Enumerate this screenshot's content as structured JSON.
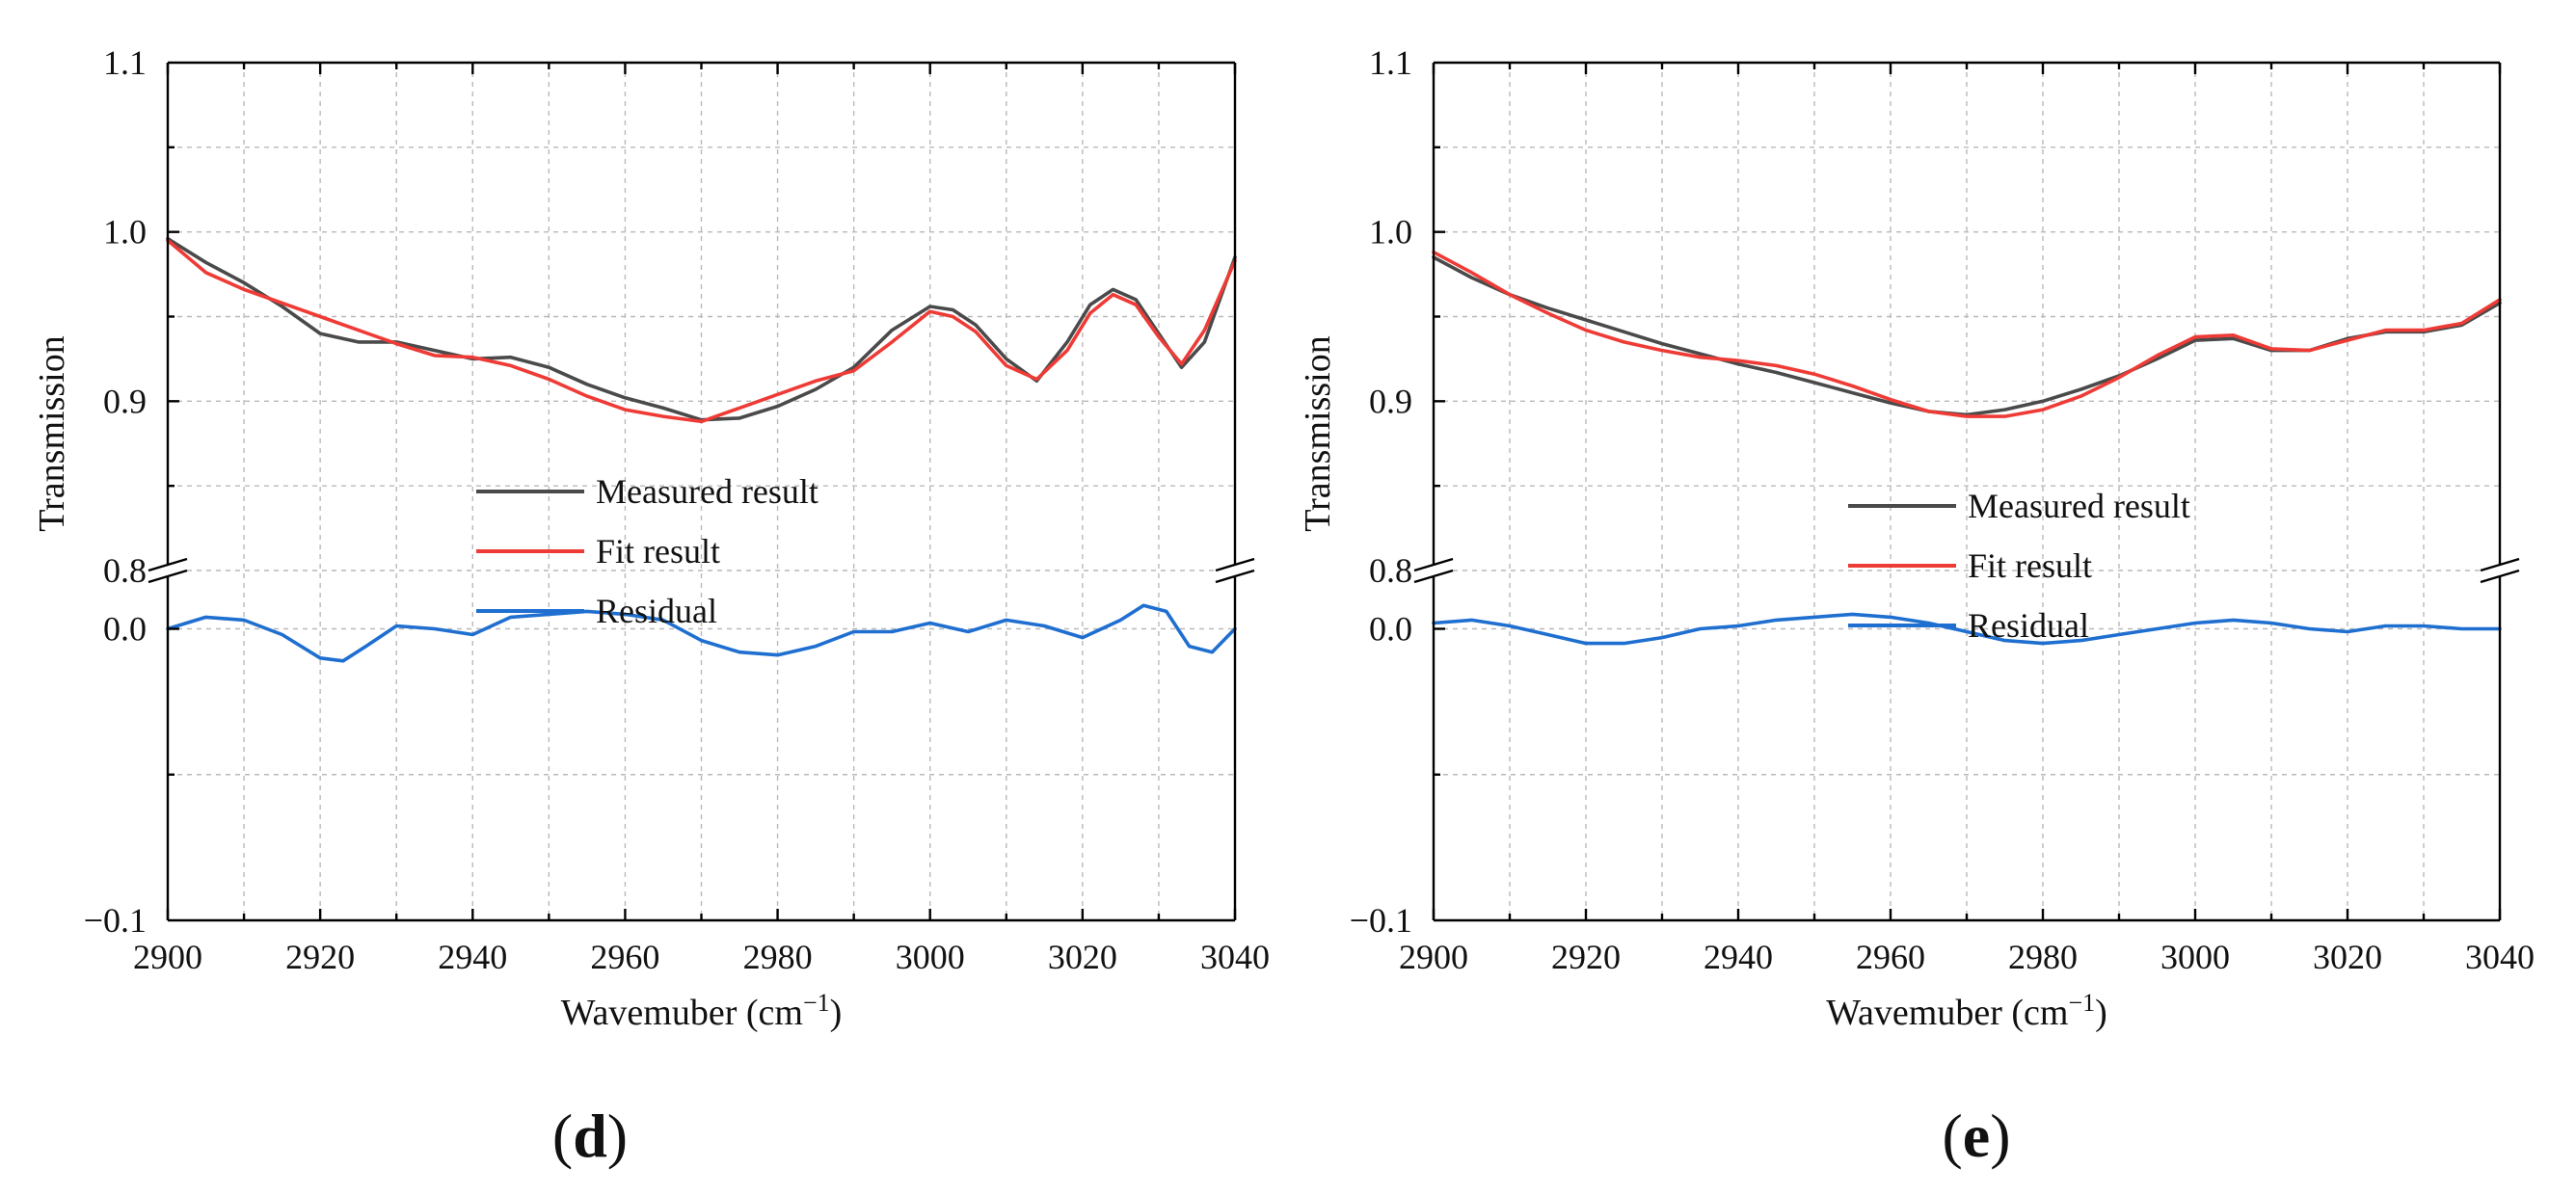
{
  "figure": {
    "panel_labels": [
      {
        "open": "(",
        "letter": "d",
        "close": ")"
      },
      {
        "open": "(",
        "letter": "e",
        "close": ")"
      }
    ]
  },
  "chart_data": [
    {
      "type": "line",
      "panel": "d",
      "xlabel": "Wavemuber (cm",
      "xlabel_sup": "−1",
      "xlabel_close": ")",
      "ylabel": "Transmission",
      "xlim": [
        2900,
        3040
      ],
      "x_ticks": [
        "2900",
        "2920",
        "2940",
        "2960",
        "2980",
        "3000",
        "3020",
        "3040"
      ],
      "y_ticks_upper": [
        "1.1",
        "1.0",
        "0.9",
        "0.8"
      ],
      "y_ticks_lower": [
        "0.0",
        "−0.1"
      ],
      "upper_ylim": [
        0.8,
        1.1
      ],
      "lower_ylim": [
        -0.1,
        0.02
      ],
      "axis_break": true,
      "grid": true,
      "legend_position": "center",
      "legend": [
        "Measured result",
        "Fit result",
        "Residual"
      ],
      "series": [
        {
          "name": "Measured result",
          "color": "#4a4a4a",
          "axis": "upper",
          "x": [
            2900,
            2905,
            2910,
            2915,
            2920,
            2925,
            2930,
            2935,
            2940,
            2945,
            2950,
            2955,
            2960,
            2965,
            2970,
            2975,
            2980,
            2985,
            2990,
            2995,
            3000,
            3003,
            3006,
            3010,
            3014,
            3018,
            3021,
            3024,
            3027,
            3030,
            3033,
            3036,
            3040
          ],
          "y": [
            0.996,
            0.982,
            0.97,
            0.956,
            0.94,
            0.935,
            0.935,
            0.93,
            0.925,
            0.926,
            0.92,
            0.91,
            0.902,
            0.896,
            0.889,
            0.89,
            0.897,
            0.907,
            0.92,
            0.942,
            0.956,
            0.954,
            0.945,
            0.925,
            0.912,
            0.935,
            0.957,
            0.966,
            0.96,
            0.94,
            0.92,
            0.935,
            0.985
          ]
        },
        {
          "name": "Fit result",
          "color": "#ef3b36",
          "axis": "upper",
          "x": [
            2900,
            2905,
            2910,
            2915,
            2920,
            2925,
            2930,
            2935,
            2940,
            2945,
            2950,
            2955,
            2960,
            2965,
            2970,
            2975,
            2980,
            2985,
            2990,
            2995,
            3000,
            3003,
            3006,
            3010,
            3014,
            3018,
            3021,
            3024,
            3027,
            3030,
            3033,
            3036,
            3040
          ],
          "y": [
            0.995,
            0.976,
            0.966,
            0.958,
            0.95,
            0.942,
            0.934,
            0.927,
            0.926,
            0.921,
            0.913,
            0.903,
            0.895,
            0.891,
            0.888,
            0.896,
            0.904,
            0.912,
            0.918,
            0.935,
            0.953,
            0.95,
            0.941,
            0.921,
            0.913,
            0.93,
            0.952,
            0.963,
            0.957,
            0.938,
            0.922,
            0.942,
            0.983
          ]
        },
        {
          "name": "Residual",
          "color": "#1f6fd0",
          "axis": "lower",
          "x": [
            2900,
            2905,
            2910,
            2915,
            2920,
            2923,
            2926,
            2930,
            2935,
            2940,
            2945,
            2950,
            2955,
            2960,
            2965,
            2970,
            2975,
            2980,
            2985,
            2990,
            2995,
            3000,
            3005,
            3010,
            3015,
            3020,
            3025,
            3028,
            3031,
            3034,
            3037,
            3040
          ],
          "y": [
            0.0,
            0.004,
            0.003,
            -0.002,
            -0.01,
            -0.011,
            -0.006,
            0.001,
            0.0,
            -0.002,
            0.004,
            0.005,
            0.006,
            0.005,
            0.003,
            -0.004,
            -0.008,
            -0.009,
            -0.006,
            -0.001,
            -0.001,
            0.002,
            -0.001,
            0.003,
            0.001,
            -0.003,
            0.003,
            0.008,
            0.006,
            -0.006,
            -0.008,
            0.0
          ]
        }
      ]
    },
    {
      "type": "line",
      "panel": "e",
      "xlabel": "Wavemuber (cm",
      "xlabel_sup": "−1",
      "xlabel_close": ")",
      "ylabel": "Transmission",
      "xlim": [
        2900,
        3040
      ],
      "x_ticks": [
        "2900",
        "2920",
        "2940",
        "2960",
        "2980",
        "3000",
        "3020",
        "3040"
      ],
      "y_ticks_upper": [
        "1.1",
        "1.0",
        "0.9",
        "0.8"
      ],
      "y_ticks_lower": [
        "0.0",
        "−0.1"
      ],
      "upper_ylim": [
        0.8,
        1.1
      ],
      "lower_ylim": [
        -0.1,
        0.02
      ],
      "axis_break": true,
      "grid": true,
      "legend_position": "center",
      "legend": [
        "Measured result",
        "Fit result",
        "Residual"
      ],
      "series": [
        {
          "name": "Measured result",
          "color": "#4a4a4a",
          "axis": "upper",
          "x": [
            2900,
            2905,
            2910,
            2915,
            2920,
            2925,
            2930,
            2935,
            2940,
            2945,
            2950,
            2955,
            2960,
            2965,
            2970,
            2975,
            2980,
            2985,
            2990,
            2995,
            3000,
            3005,
            3010,
            3015,
            3020,
            3025,
            3030,
            3035,
            3040
          ],
          "y": [
            0.985,
            0.973,
            0.963,
            0.955,
            0.948,
            0.941,
            0.934,
            0.928,
            0.922,
            0.917,
            0.911,
            0.905,
            0.899,
            0.894,
            0.892,
            0.895,
            0.9,
            0.907,
            0.915,
            0.925,
            0.936,
            0.937,
            0.93,
            0.93,
            0.937,
            0.941,
            0.941,
            0.945,
            0.958
          ]
        },
        {
          "name": "Fit result",
          "color": "#ef3b36",
          "axis": "upper",
          "x": [
            2900,
            2905,
            2910,
            2915,
            2920,
            2925,
            2930,
            2935,
            2940,
            2945,
            2950,
            2955,
            2960,
            2965,
            2970,
            2975,
            2980,
            2985,
            2990,
            2995,
            3000,
            3005,
            3010,
            3015,
            3020,
            3025,
            3030,
            3035,
            3040
          ],
          "y": [
            0.988,
            0.976,
            0.963,
            0.952,
            0.942,
            0.935,
            0.93,
            0.926,
            0.924,
            0.921,
            0.916,
            0.909,
            0.901,
            0.894,
            0.891,
            0.891,
            0.895,
            0.903,
            0.914,
            0.927,
            0.938,
            0.939,
            0.931,
            0.93,
            0.936,
            0.942,
            0.942,
            0.946,
            0.96
          ]
        },
        {
          "name": "Residual",
          "color": "#1f6fd0",
          "axis": "lower",
          "x": [
            2900,
            2905,
            2910,
            2915,
            2920,
            2925,
            2930,
            2935,
            2940,
            2945,
            2950,
            2955,
            2960,
            2965,
            2970,
            2975,
            2980,
            2985,
            2990,
            2995,
            3000,
            3005,
            3010,
            3015,
            3020,
            3025,
            3030,
            3035,
            3040
          ],
          "y": [
            0.002,
            0.003,
            0.001,
            -0.002,
            -0.005,
            -0.005,
            -0.003,
            0.0,
            0.001,
            0.003,
            0.004,
            0.005,
            0.004,
            0.002,
            -0.001,
            -0.004,
            -0.005,
            -0.004,
            -0.002,
            0.0,
            0.002,
            0.003,
            0.002,
            0.0,
            -0.001,
            0.001,
            0.001,
            0.0,
            0.0
          ]
        }
      ]
    }
  ]
}
